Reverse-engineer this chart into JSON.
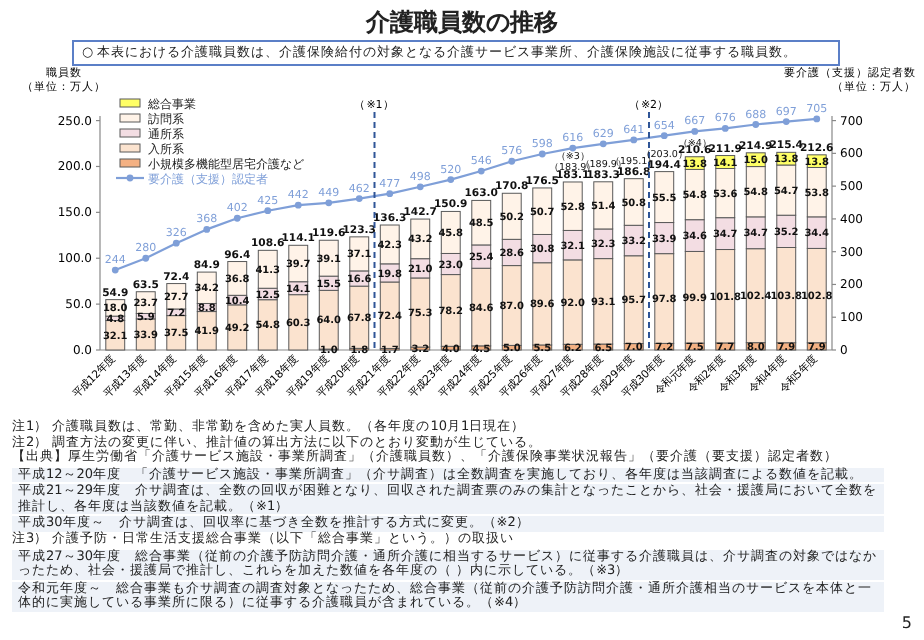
{
  "chart_data": {
    "type": "bar",
    "stacked": true,
    "title": "介護職員数の推移",
    "subtitle": "○ 本表における介護職員数は、介護保険給付の対象となる介護サービス事業所、介護保険施設に従事する職員数。",
    "ylabel": "職員数（単位：万人）",
    "y2label": "要介護（支援）認定者数（単位：万人）",
    "categories": [
      "平成12年度",
      "平成13年度",
      "平成14年度",
      "平成15年度",
      "平成16年度",
      "平成17年度",
      "平成18年度",
      "平成19年度",
      "平成20年度",
      "平成21年度",
      "平成22年度",
      "平成23年度",
      "平成24年度",
      "平成25年度",
      "平成26年度",
      "平成27年度",
      "平成28年度",
      "平成29年度",
      "平成30年度",
      "令和元年度",
      "令和2年度",
      "令和3年度",
      "令和4年度",
      "令和5年度"
    ],
    "series": [
      {
        "name": "小規模多機能型居宅介護など",
        "color": "#f4b183",
        "values": [
          null,
          null,
          null,
          null,
          null,
          null,
          null,
          1.0,
          1.8,
          1.7,
          3.2,
          4.0,
          4.5,
          5.0,
          5.5,
          6.2,
          6.5,
          7.0,
          7.2,
          7.5,
          7.7,
          8.0,
          7.9,
          7.9
        ],
        "value_labels": [
          null,
          null,
          null,
          null,
          null,
          null,
          null,
          "1.0",
          "1.8",
          "1.7",
          "3.2",
          "4.0",
          "4.5",
          "5.0",
          "5.5",
          "6.2",
          "6.5",
          "7.0",
          "7.2",
          "7.5",
          "7.7",
          "8.0",
          "7.9",
          "7.9"
        ]
      },
      {
        "name": "入所系",
        "color": "#fbe3cf",
        "values": [
          32.1,
          33.9,
          37.5,
          41.9,
          49.2,
          54.8,
          60.3,
          64.0,
          67.8,
          72.4,
          75.3,
          78.2,
          84.6,
          87.0,
          89.6,
          92.0,
          93.1,
          95.7,
          97.8,
          99.9,
          101.8,
          102.4,
          103.8,
          102.8
        ],
        "value_labels": [
          "32.1",
          "33.9",
          "37.5",
          "41.9",
          "49.2",
          "54.8",
          "60.3",
          "64.0",
          "67.8",
          "72.4",
          "75.3",
          "78.2",
          "84.6",
          "87.0",
          "89.6",
          "92.0",
          "93.1",
          "95.7",
          "97.8",
          "99.9",
          "101.8",
          "102.4",
          "103.8",
          "102.8"
        ]
      },
      {
        "name": "通所系",
        "color": "#f3dde3",
        "values": [
          4.8,
          5.9,
          7.2,
          8.8,
          10.4,
          12.5,
          14.1,
          15.5,
          16.6,
          19.8,
          21.0,
          23.0,
          25.4,
          28.6,
          30.8,
          32.1,
          32.3,
          33.2,
          33.9,
          34.6,
          34.7,
          34.7,
          35.2,
          34.4
        ],
        "value_labels": [
          "4.8",
          "5.9",
          "7.2",
          "8.8",
          "10.4",
          "12.5",
          "14.1",
          "15.5",
          "16.6",
          "19.8",
          "21.0",
          "23.0",
          "25.4",
          "28.6",
          "30.8",
          "32.1",
          "32.3",
          "33.2",
          "33.9",
          "34.6",
          "34.7",
          "34.7",
          "35.2",
          "34.4"
        ]
      },
      {
        "name": "訪問系",
        "color": "#fff3e8",
        "values": [
          18.0,
          23.7,
          27.7,
          34.2,
          36.8,
          41.3,
          39.7,
          39.1,
          37.1,
          42.3,
          43.2,
          45.8,
          48.5,
          50.2,
          50.7,
          52.8,
          51.4,
          50.8,
          55.5,
          54.8,
          53.6,
          54.8,
          54.7,
          53.8
        ],
        "value_labels": [
          "18.0",
          "23.7",
          "27.7",
          "34.2",
          "36.8",
          "41.3",
          "39.7",
          "39.1",
          "37.1",
          "42.3",
          "43.2",
          "45.8",
          "48.5",
          "50.2",
          "50.7",
          "52.8",
          "51.4",
          "50.8",
          "55.5",
          "54.8",
          "53.6",
          "54.8",
          "54.7",
          "53.8"
        ]
      },
      {
        "name": "総合事業",
        "color": "#ffff66",
        "values": [
          null,
          null,
          null,
          null,
          null,
          null,
          null,
          null,
          null,
          null,
          null,
          null,
          null,
          null,
          null,
          null,
          null,
          null,
          null,
          13.8,
          14.1,
          15.0,
          13.8,
          13.8
        ],
        "value_labels": [
          null,
          null,
          null,
          null,
          null,
          null,
          null,
          null,
          null,
          null,
          null,
          null,
          null,
          null,
          null,
          null,
          null,
          null,
          null,
          "13.8",
          "14.1",
          "15.0",
          "13.8",
          "13.8"
        ]
      },
      {
        "name": "要介護（支援）認定者",
        "type": "line",
        "axis": "y2",
        "color": "#7f9fd8",
        "values": [
          244,
          280,
          326,
          368,
          402,
          425,
          442,
          449,
          462,
          477,
          498,
          520,
          546,
          576,
          598,
          616,
          629,
          641,
          654,
          667,
          676,
          688,
          697,
          705
        ]
      }
    ],
    "totals": [
      "54.9",
      "63.5",
      "72.4",
      "84.9",
      "96.4",
      "108.6",
      "114.1",
      "119.6",
      "123.3",
      "136.3",
      "142.7",
      "150.9",
      "163.0",
      "170.8",
      "176.5",
      "183.1",
      "183.3",
      "186.8",
      "194.4",
      "210.6",
      "211.9",
      "214.9",
      "215.4",
      "212.6"
    ],
    "data_labels": true,
    "marker": "circle",
    "legend": "top left",
    "ylim": [
      0,
      255
    ],
    "yticks": [
      {
        "value": 0,
        "label": "0.0"
      },
      {
        "value": 50,
        "label": "50.0"
      },
      {
        "value": 100,
        "label": "100.0"
      },
      {
        "value": 150,
        "label": "150.0"
      },
      {
        "value": 200,
        "label": "200.0"
      },
      {
        "value": 250,
        "label": "250.0"
      }
    ],
    "y2lim": [
      0,
      714
    ],
    "y2ticks": [
      0,
      100,
      200,
      300,
      400,
      500,
      600,
      700
    ],
    "annotations": [
      "（※1）",
      "（※2）",
      {
        "text": "（183.9）",
        "x": "平成27年度",
        "y": 183.9
      },
      {
        "text": "（※3）",
        "x": "平成27年度",
        "y": 183.9
      },
      {
        "text": "（189.9）",
        "x": "平成28年度",
        "y": 189.9
      },
      {
        "text": "（195.1）",
        "x": "平成29年度",
        "y": 195.1
      },
      {
        "text": "（203.0）",
        "x": "平成30年度",
        "y": 203.0
      },
      {
        "text": "（※4）",
        "x": "令和元年度",
        "y": 210.6
      },
      "注1） 介護職員数は、常勤、非常勤を含めた実人員数。（各年度の10月1日現在）",
      "注2） 調査方法の変更に伴い、推計値の算出方法に以下のとおり変動が生じている。",
      "【出典】厚生労働省「介護サービス施設・事業所調査」（介護職員数）、「介護保険事業状況報告」（要介護（要支援）認定者数）",
      "平成12～20年度　「介護サービス施設・事業所調査」（介サ調査）は全数調査を実施しており、各年度は当該調査による数値を記載。",
      "平成21～29年度　介サ調査は、全数の回収が困難となり、回収された調査票のみの集計となったことから、社会・援護局において全数を推計し、各年度は当該数値を記載。（※1）",
      "平成30年度～　介サ調査は、回収率に基づき全数を推計する方式に変更。（※2）",
      "注3） 介護予防・日常生活支援総合事業（以下「総合事業」という。）の取扱い",
      "平成27～30年度　総合事業（従前の介護予防訪問介護・通所介護に相当するサービス）に従事する介護職員は、介サ調査の対象ではなかったため、社会・援護局で推計し、これらを加えた数値を各年度の（ ）内に示している。（※3）",
      "令和元年度～　総合事業も介サ調査の調査対象となったため、総合事業（従前の介護予防訪問介護・通所介護相当のサービスを本体と一体的に実施している事業所に限る）に従事する介護職員が含まれている。（※4）",
      "5"
    ]
  }
}
